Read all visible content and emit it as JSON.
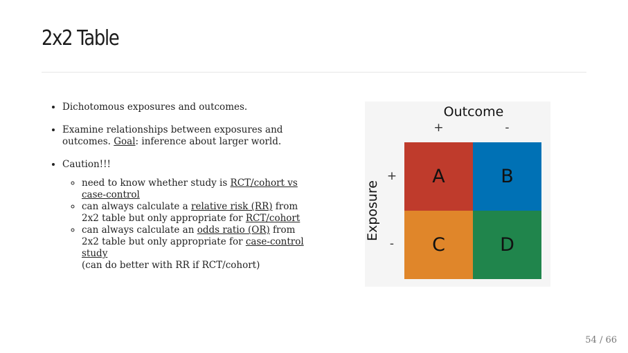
{
  "slide": {
    "title": "2x2 Table",
    "bullets": {
      "b1": "Dichotomous exposures and outcomes.",
      "b2_pre": "Examine relationships between exposures and outcomes. ",
      "b2_goal": "Goal",
      "b2_post": ": inference about larger world.",
      "b3": "Caution!!!"
    },
    "sub_bullets": {
      "s1_pre": "need to know whether study is ",
      "s1_link": "RCT/cohort vs case-control",
      "s2_pre": "can always calculate a ",
      "s2_link1": "relative risk (RR)",
      "s2_mid": " from 2x2 table but only appropriate for ",
      "s2_link2": "RCT/cohort",
      "s3_pre": "can always calculate an ",
      "s3_link1": "odds ratio (OR)",
      "s3_mid": " from 2x2 table but only appropriate for ",
      "s3_link2": "case-control study",
      "s3_post": "(can do better with RR if RCT/cohort)"
    }
  },
  "table": {
    "outcome_label": "Outcome",
    "exposure_label": "Exposure",
    "col_signs": [
      "+",
      "-"
    ],
    "row_signs": [
      "+",
      "-"
    ],
    "cells": [
      {
        "label": "A",
        "color": "#bf3b2c"
      },
      {
        "label": "B",
        "color": "#0071b5"
      },
      {
        "label": "C",
        "color": "#e0862a"
      },
      {
        "label": "D",
        "color": "#20854c"
      }
    ]
  },
  "pagination": {
    "text": "54 / 66"
  }
}
